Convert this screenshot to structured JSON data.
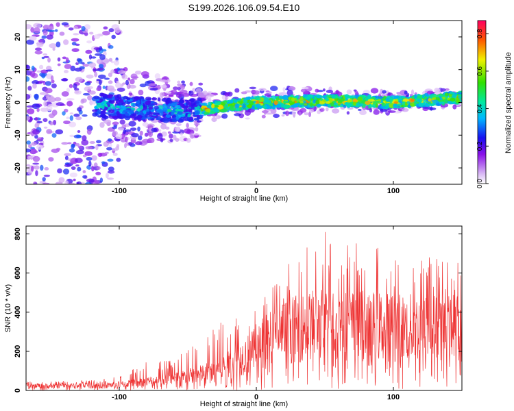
{
  "title": "S199.2026.106.09.54.E10",
  "chart_data": [
    {
      "type": "heatmap",
      "xlabel": "Height of straight line (km)",
      "ylabel": "Frequency (Hz)",
      "xlim": [
        -168,
        150
      ],
      "ylim": [
        -25,
        25
      ],
      "x_ticks": [
        -100,
        0,
        100
      ],
      "y_ticks": [
        -20,
        -10,
        0,
        10,
        20
      ],
      "colorbar": {
        "label": "Normalized spectral amplitude",
        "range": [
          0.0,
          0.87
        ],
        "ticks": [
          "0.0",
          "0.2",
          "0.4",
          "0.6",
          "0.8"
        ]
      },
      "ridge": {
        "frequency_hz_at_height_km": [
          {
            "x": -115,
            "y": -1.0
          },
          {
            "x": -80,
            "y": -2.0
          },
          {
            "x": -50,
            "y": -3.0
          },
          {
            "x": -30,
            "y": -1.5
          },
          {
            "x": 0,
            "y": 0.0
          },
          {
            "x": 50,
            "y": 0.5
          },
          {
            "x": 100,
            "y": 0.0
          },
          {
            "x": 148,
            "y": 1.5
          }
        ]
      }
    },
    {
      "type": "line",
      "xlabel": "Height of straight line (km)",
      "ylabel": "SNR (10 * v/v)",
      "xlim": [
        -168,
        150
      ],
      "ylim": [
        0,
        840
      ],
      "x_ticks": [
        -100,
        0,
        100
      ],
      "y_ticks": [
        0,
        200,
        400,
        600,
        800
      ],
      "color": "#ee3333",
      "envelope": [
        {
          "x": -168,
          "mean": 22,
          "peak": 45
        },
        {
          "x": -120,
          "mean": 25,
          "peak": 55
        },
        {
          "x": -100,
          "mean": 30,
          "peak": 70
        },
        {
          "x": -80,
          "mean": 45,
          "peak": 150
        },
        {
          "x": -60,
          "mean": 60,
          "peak": 160
        },
        {
          "x": -40,
          "mean": 85,
          "peak": 270
        },
        {
          "x": -20,
          "mean": 130,
          "peak": 380
        },
        {
          "x": 0,
          "mean": 210,
          "peak": 450
        },
        {
          "x": 20,
          "mean": 300,
          "peak": 620
        },
        {
          "x": 45,
          "mean": 340,
          "peak": 840
        },
        {
          "x": 80,
          "mean": 330,
          "peak": 740
        },
        {
          "x": 110,
          "mean": 320,
          "peak": 720
        },
        {
          "x": 150,
          "mean": 320,
          "peak": 700
        }
      ]
    }
  ]
}
